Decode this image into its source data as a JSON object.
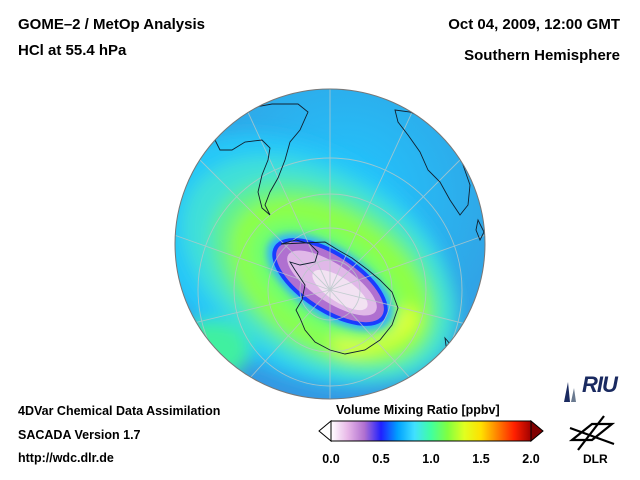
{
  "header": {
    "title_line1": "GOME–2 / MetOp Analysis",
    "title_line2": "HCl at 55.4 hPa",
    "date": "Oct 04, 2009, 12:00 GMT",
    "hemisphere": "Southern Hemisphere"
  },
  "footer": {
    "line1": "4DVar Chemical Data Assimilation",
    "line2": "SACADA Version 1.7",
    "line3": "http://wdc.dlr.de"
  },
  "colorbar": {
    "title": "Volume Mixing Ratio [ppbv]",
    "ticks": [
      "0.0",
      "0.5",
      "1.0",
      "1.5",
      "2.0"
    ],
    "min": 0.0,
    "max": 2.0,
    "colors": [
      "#ffffff",
      "#e8b8e8",
      "#b070d0",
      "#2020ff",
      "#00a0ff",
      "#40e0ff",
      "#40ffa0",
      "#80ff40",
      "#e0ff20",
      "#ffe000",
      "#ff8000",
      "#ff2000",
      "#a00000"
    ]
  },
  "map": {
    "icons": [
      "globe-map",
      "graticule",
      "coastlines"
    ],
    "ocean_color": "#2fa8e8",
    "vortex_color": "#e8c8e8"
  },
  "logos": {
    "riu_text": "RIU",
    "dlr_text": "DLR"
  }
}
